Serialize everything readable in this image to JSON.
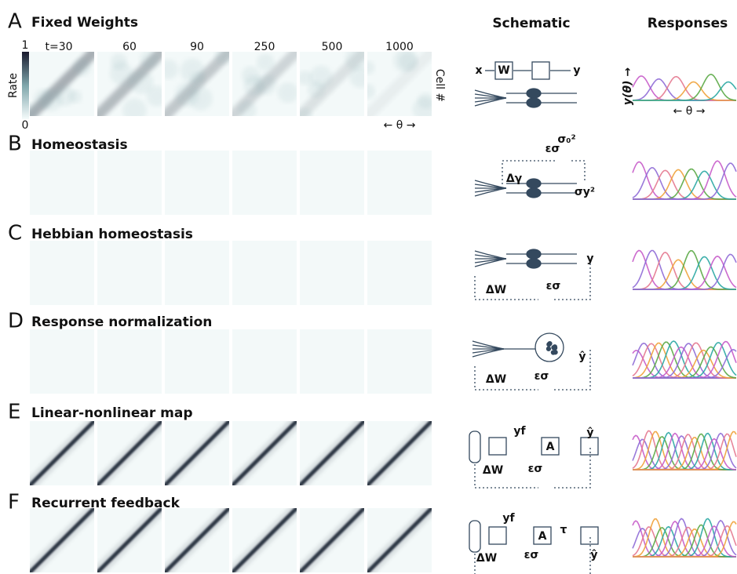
{
  "header": {
    "schematic": "Schematic",
    "responses": "Responses"
  },
  "time_labels": [
    "t=30",
    "60",
    "90",
    "250",
    "500",
    "1000"
  ],
  "colorbar": {
    "label": "Rate",
    "max": "1",
    "min": "0"
  },
  "axis_labels": {
    "cells": "Cell #",
    "theta": "← θ →",
    "response": "y(θ) →",
    "response_theta": "← θ →"
  },
  "panels": [
    {
      "letter": "A",
      "title": "Fixed Weights",
      "schematic": [
        "x",
        "W",
        "y"
      ]
    },
    {
      "letter": "B",
      "title": "Homeostasis",
      "schematic": [
        "σ₀²",
        "εσ",
        "Δγ",
        "σy²"
      ]
    },
    {
      "letter": "C",
      "title": "Hebbian homeostasis",
      "schematic": [
        "y",
        "ΔW",
        "εσ"
      ]
    },
    {
      "letter": "D",
      "title": "Response normalization",
      "schematic": [
        "ŷ",
        "ΔW",
        "εσ"
      ]
    },
    {
      "letter": "E",
      "title": "Linear-nonlinear map",
      "schematic": [
        "yf",
        "A",
        "ŷ",
        "ΔW",
        "εσ"
      ]
    },
    {
      "letter": "F",
      "title": "Recurrent feedback",
      "schematic": [
        "yf",
        "A",
        "τ",
        "ŷ",
        "ΔW",
        "εσ"
      ]
    }
  ]
}
